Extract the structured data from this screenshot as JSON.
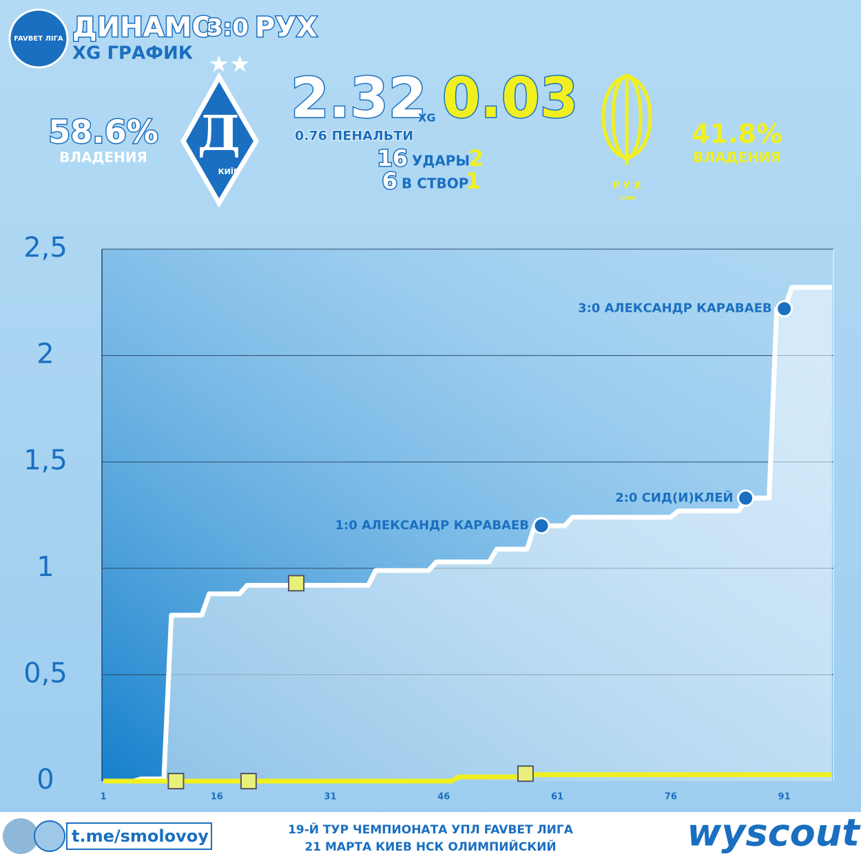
{
  "header": {
    "home_team": "ДИНАМО",
    "score": "3:0",
    "away_team": "РУХ",
    "subtitle": "XG ГРАФИК",
    "league_badge": "FAVBET ЛІГА",
    "home_xg": "2.32",
    "xg_label": "XG",
    "away_xg": "0.03",
    "penalty": "0.76 ПЕНАЛЬТИ",
    "home_shots": "16",
    "shots_label": "УДАРЫ",
    "away_shots": "2",
    "home_on_target": "6",
    "on_target_label": "В СТВОР",
    "away_on_target": "1",
    "home_possession": "58.6%",
    "away_possession": "41.8%",
    "possession_label": "ВЛАДЕНИЯ",
    "home_city": "КИЇВ",
    "away_logo": "Р У Х",
    "away_city": "ЛЬВІВ"
  },
  "footer": {
    "link": "t.me/smolovoy",
    "line1": "19-Й ТУР ЧЕМПИОНАТА УПЛ FAVBET ЛИГА",
    "line2": "21 МАРТА КИЕВ НСК ОЛИМПИЙСКИЙ",
    "brand": "wyscout"
  },
  "chart_data": {
    "type": "line",
    "xlim": [
      1,
      97.5
    ],
    "xticks": [
      1,
      16,
      31,
      46,
      61,
      76,
      91
    ],
    "ylim": [
      0,
      2.5
    ],
    "yticks": [
      0,
      {
        "value": 0.5,
        "label": "0,5"
      },
      1,
      {
        "value": 1.5,
        "label": "1,5"
      },
      2,
      {
        "value": 2.5,
        "label": "2,5"
      }
    ],
    "grid": true,
    "series": [
      {
        "name": "ДИНАМО",
        "color": "#ffffff",
        "x": [
          1,
          5,
          6,
          9,
          10,
          14,
          15,
          19,
          20,
          36,
          37,
          44,
          45,
          52,
          53,
          57,
          58,
          62,
          63,
          76,
          77,
          85,
          86,
          89,
          90,
          91,
          92,
          97.3
        ],
        "values": [
          0,
          0,
          0.01,
          0.01,
          0.78,
          0.78,
          0.88,
          0.88,
          0.92,
          0.92,
          0.99,
          0.99,
          1.03,
          1.03,
          1.09,
          1.09,
          1.2,
          1.2,
          1.24,
          1.24,
          1.27,
          1.27,
          1.33,
          1.33,
          2.22,
          2.22,
          2.32,
          2.32
        ]
      },
      {
        "name": "РУХ",
        "color": "#f0f020",
        "x": [
          1,
          47,
          48,
          56,
          57,
          97.3
        ],
        "values": [
          0,
          0,
          0.02,
          0.02,
          0.03,
          0.03
        ]
      }
    ],
    "goals": {
      "color": "#1a6fc0",
      "x": [
        58.9,
        85.9,
        91
      ],
      "values": [
        1.2,
        1.33,
        2.22
      ],
      "labels": [
        "1:0 АЛЕКСАНДР КАРАВАЕВ",
        "2:0 СИД(И)КЛЕЙ",
        "3:0 АЛЕКСАНДР КАРАВАЕВ"
      ]
    },
    "shots": {
      "color": "#e8f07a",
      "x": [
        10.6,
        20.2,
        26.5,
        56.8
      ],
      "values": [
        0,
        0,
        0.93,
        0.035
      ]
    }
  }
}
